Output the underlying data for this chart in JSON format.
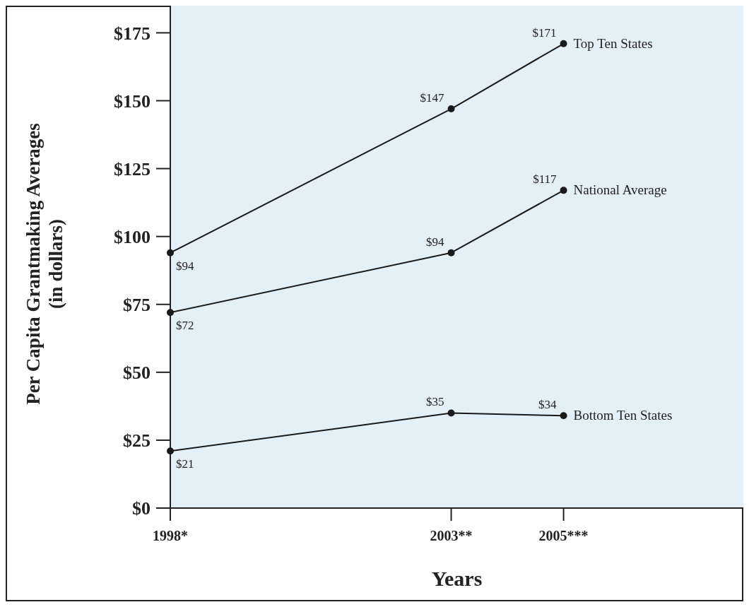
{
  "chart_data": {
    "type": "line",
    "xlabel": "Years",
    "ylabel": "Per Capita Grantmaking Averages\n(in dollars)",
    "x": [
      1998,
      2003,
      2005
    ],
    "xlim": [
      1998,
      2008.2
    ],
    "xticks": [
      {
        "value": 1998,
        "label": "1998*"
      },
      {
        "value": 2003,
        "label": "2003**"
      },
      {
        "value": 2005,
        "label": "2005***"
      }
    ],
    "ylim": [
      0,
      185
    ],
    "yticks": [
      {
        "value": 0,
        "label": "$0"
      },
      {
        "value": 25,
        "label": "$25"
      },
      {
        "value": 50,
        "label": "$50"
      },
      {
        "value": 75,
        "label": "$75"
      },
      {
        "value": 100,
        "label": "$100"
      },
      {
        "value": 125,
        "label": "$125"
      },
      {
        "value": 150,
        "label": "$150"
      },
      {
        "value": 175,
        "label": "$175"
      }
    ],
    "grid": false,
    "marker": "circle",
    "line_style": "solid",
    "series": [
      {
        "name": "Top Ten States",
        "color": "#1a1a1a",
        "values": [
          94,
          147,
          171
        ],
        "value_labels": [
          "$94",
          "$147",
          "$171"
        ]
      },
      {
        "name": "National Average",
        "color": "#1a1a1a",
        "values": [
          72,
          94,
          117
        ],
        "value_labels": [
          "$72",
          "$94",
          "$117"
        ]
      },
      {
        "name": "Bottom Ten States",
        "color": "#1a1a1a",
        "values": [
          21,
          35,
          34
        ],
        "value_labels": [
          "$21",
          "$35",
          "$34"
        ]
      }
    ]
  }
}
